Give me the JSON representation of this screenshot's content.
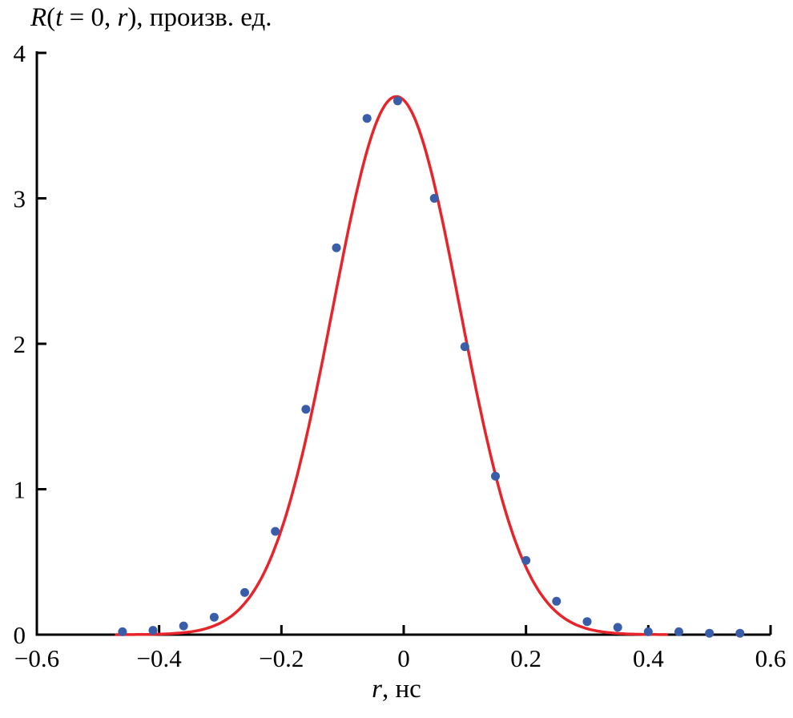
{
  "title": {
    "text": "R(t = 0, r), произв. ед.",
    "parts": [
      {
        "text": "R",
        "italic": true
      },
      {
        "text": "(",
        "italic": false
      },
      {
        "text": "t",
        "italic": true
      },
      {
        "text": " = 0, ",
        "italic": false
      },
      {
        "text": "r",
        "italic": true
      },
      {
        "text": "), произв. ед.",
        "italic": false
      }
    ]
  },
  "xlabel": {
    "text": "r, нс",
    "parts": [
      {
        "text": "r",
        "italic": true
      },
      {
        "text": ", нс",
        "italic": false
      }
    ]
  },
  "colors": {
    "axis": "#000000",
    "fit_line": "#e8242b",
    "scatter_point": "#3a5da9",
    "background": "#ffffff"
  },
  "chart_data": {
    "type": "scatter",
    "title": "R(t = 0, r), произв. ед.",
    "xlabel": "r, нс",
    "ylabel": "",
    "xlim": [
      -0.6,
      0.6
    ],
    "ylim": [
      0,
      4
    ],
    "grid": false,
    "legend": "none",
    "x_ticks": {
      "values": [
        -0.6,
        -0.4,
        -0.2,
        0,
        0.2,
        0.4,
        0.6
      ],
      "labels": [
        "−0.6",
        "−0.4",
        "−0.2",
        "0",
        "0.2",
        "0.4",
        "0.6"
      ]
    },
    "y_ticks": {
      "values": [
        0,
        1,
        2,
        3,
        4
      ],
      "labels": [
        "0",
        "1",
        "2",
        "3",
        "4"
      ]
    },
    "series": [
      {
        "name": "measured-points",
        "type": "scatter",
        "color": "#3a5da9",
        "marker_radius": 5.5,
        "x": [
          -0.46,
          -0.41,
          -0.36,
          -0.31,
          -0.26,
          -0.21,
          -0.16,
          -0.11,
          -0.06,
          -0.01,
          0.05,
          0.1,
          0.15,
          0.2,
          0.25,
          0.3,
          0.35,
          0.4,
          0.45,
          0.5,
          0.55
        ],
        "y": [
          0.02,
          0.03,
          0.06,
          0.12,
          0.29,
          0.71,
          1.55,
          2.66,
          3.55,
          3.67,
          3.0,
          1.98,
          1.09,
          0.51,
          0.23,
          0.09,
          0.05,
          0.02,
          0.02,
          0.01,
          0.01
        ]
      },
      {
        "name": "gaussian-fit",
        "type": "line",
        "color": "#e8242b",
        "stroke_width": 3.5,
        "model": "gaussian",
        "amplitude": 3.7,
        "center": -0.012,
        "sigma": 0.104,
        "x_range": [
          -0.47,
          0.43
        ]
      }
    ]
  }
}
